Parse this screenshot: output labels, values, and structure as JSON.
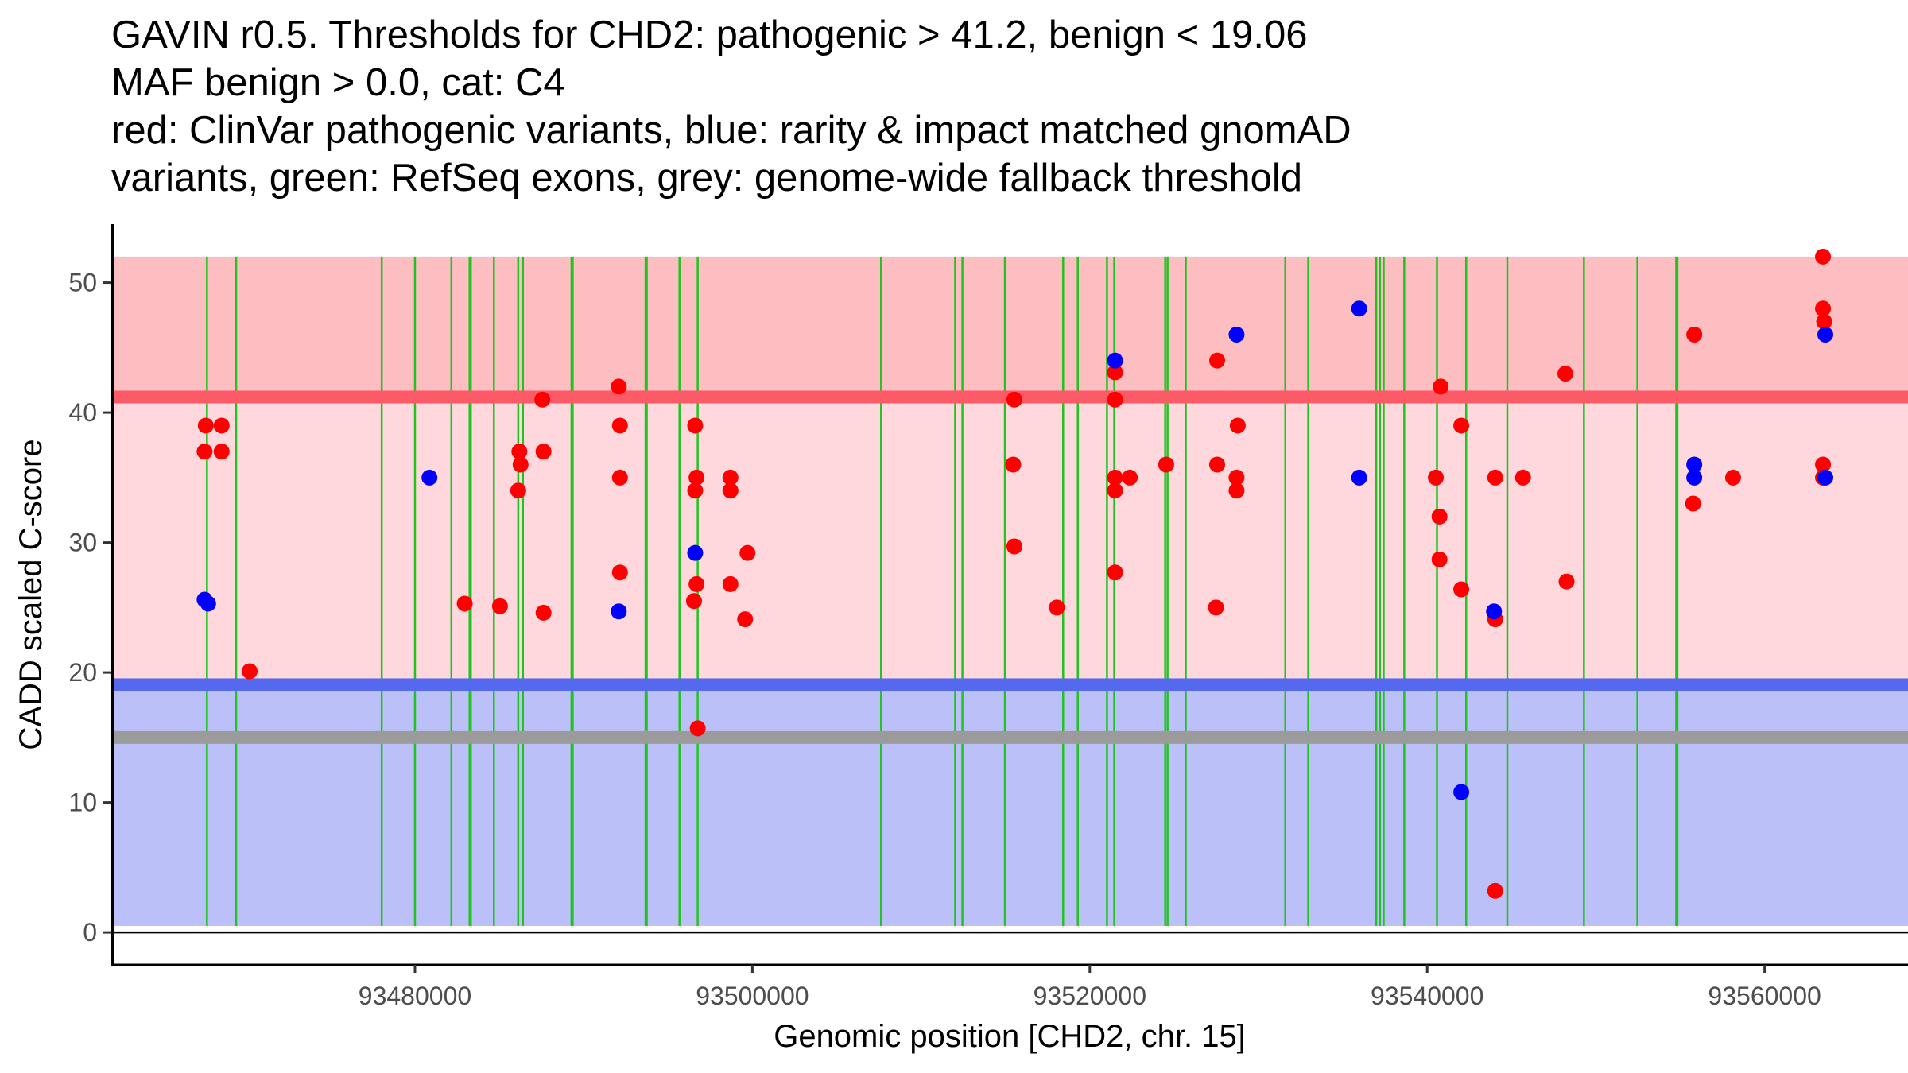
{
  "chart_data": {
    "type": "scatter",
    "title_lines": [
      "GAVIN r0.5. Thresholds for CHD2: pathogenic > 41.2, benign < 19.06",
      "MAF benign > 0.0, cat: C4",
      "red: ClinVar pathogenic variants, blue: rarity & impact matched gnomAD",
      "variants, green: RefSeq exons, grey: genome-wide fallback threshold"
    ],
    "xlabel": "Genomic position [CHD2, chr. 15]",
    "ylabel": "CADD scaled C-score",
    "xlim": [
      93462000,
      93568500
    ],
    "ylim": [
      -2.5,
      54.5
    ],
    "x_ticks": [
      93480000,
      93500000,
      93520000,
      93540000,
      93560000
    ],
    "x_tick_labels": [
      "93480000",
      "93500000",
      "93520000",
      "93540000",
      "93560000"
    ],
    "y_ticks": [
      0,
      10,
      20,
      30,
      40,
      50
    ],
    "y_tick_labels": [
      "0",
      "10",
      "20",
      "30",
      "40",
      "50"
    ],
    "grid": false,
    "thresholds": {
      "pathogenic": 41.2,
      "benign": 19.06,
      "genome_wide_fallback": 15.0,
      "band_top": 52,
      "band_bottom": 0.5
    },
    "colors": {
      "pathogenic_band": "#fdbec2",
      "middle_band": "#fed8dc",
      "benign_band": "#bcc0f9",
      "pathogenic_line": "#fd5a68",
      "benign_line": "#5468f0",
      "fallback_line": "#9b9b9b",
      "exon": "#1fc41f",
      "clinvar": "#ff0000",
      "gnomad": "#0000ff"
    },
    "exons": [
      93467670,
      93469400,
      93478030,
      93480000,
      93482160,
      93483240,
      93483310,
      93484680,
      93486120,
      93486400,
      93489280,
      93489350,
      93493670,
      93493740,
      93495680,
      93496760,
      93507630,
      93512020,
      93512450,
      93514970,
      93518420,
      93519290,
      93521020,
      93521450,
      93524470,
      93524610,
      93525690,
      93531590,
      93532950,
      93536980,
      93537200,
      93537420,
      93538640,
      93540580,
      93542310,
      93544750,
      93549290,
      93552460,
      93554760,
      93554830
    ],
    "series": [
      {
        "name": "ClinVar pathogenic variants",
        "color": "#ff0000",
        "points": [
          [
            93467530,
            37
          ],
          [
            93467600,
            39
          ],
          [
            93468540,
            39
          ],
          [
            93468540,
            37
          ],
          [
            93470200,
            20.1
          ],
          [
            93482950,
            25.3
          ],
          [
            93485040,
            25.1
          ],
          [
            93486190,
            37
          ],
          [
            93486260,
            36
          ],
          [
            93486120,
            34
          ],
          [
            93487550,
            41
          ],
          [
            93487620,
            37
          ],
          [
            93487620,
            24.6
          ],
          [
            93492080,
            42
          ],
          [
            93492150,
            39
          ],
          [
            93492150,
            35
          ],
          [
            93492150,
            27.7
          ],
          [
            93496610,
            39
          ],
          [
            93496690,
            35
          ],
          [
            93496610,
            34
          ],
          [
            93496690,
            26.8
          ],
          [
            93496540,
            25.5
          ],
          [
            93496760,
            15.7
          ],
          [
            93498700,
            35
          ],
          [
            93498700,
            34
          ],
          [
            93498700,
            26.8
          ],
          [
            93499570,
            24.1
          ],
          [
            93499710,
            29.2
          ],
          [
            93515530,
            41
          ],
          [
            93515460,
            36
          ],
          [
            93515530,
            29.7
          ],
          [
            93518050,
            25
          ],
          [
            93521500,
            43.1
          ],
          [
            93521500,
            41
          ],
          [
            93521500,
            35
          ],
          [
            93521500,
            34
          ],
          [
            93521500,
            27.7
          ],
          [
            93522370,
            35
          ],
          [
            93524530,
            36
          ],
          [
            93527550,
            44
          ],
          [
            93527550,
            36
          ],
          [
            93527480,
            25
          ],
          [
            93528770,
            39
          ],
          [
            93528700,
            35
          ],
          [
            93528700,
            34
          ],
          [
            93540510,
            35
          ],
          [
            93540800,
            42
          ],
          [
            93540730,
            32
          ],
          [
            93540730,
            28.7
          ],
          [
            93542020,
            39
          ],
          [
            93542020,
            26.4
          ],
          [
            93544030,
            24.1
          ],
          [
            93544030,
            35
          ],
          [
            93544030,
            3.2
          ],
          [
            93545680,
            35
          ],
          [
            93548190,
            43
          ],
          [
            93548260,
            27
          ],
          [
            93555830,
            46
          ],
          [
            93555760,
            33
          ],
          [
            93558130,
            35
          ],
          [
            93563460,
            52
          ],
          [
            93563460,
            48
          ],
          [
            93563530,
            47
          ],
          [
            93563460,
            36
          ],
          [
            93563460,
            35
          ]
        ]
      },
      {
        "name": "rarity & impact matched gnomAD variants",
        "color": "#0000ff",
        "points": [
          [
            93467530,
            25.6
          ],
          [
            93467740,
            25.3
          ],
          [
            93480860,
            35
          ],
          [
            93492080,
            24.7
          ],
          [
            93496610,
            29.2
          ],
          [
            93521500,
            44
          ],
          [
            93528700,
            46
          ],
          [
            93535970,
            48
          ],
          [
            93535970,
            35
          ],
          [
            93542020,
            10.8
          ],
          [
            93543960,
            24.7
          ],
          [
            93555830,
            36
          ],
          [
            93555830,
            35
          ],
          [
            93563600,
            46
          ],
          [
            93563600,
            35
          ]
        ]
      }
    ]
  }
}
